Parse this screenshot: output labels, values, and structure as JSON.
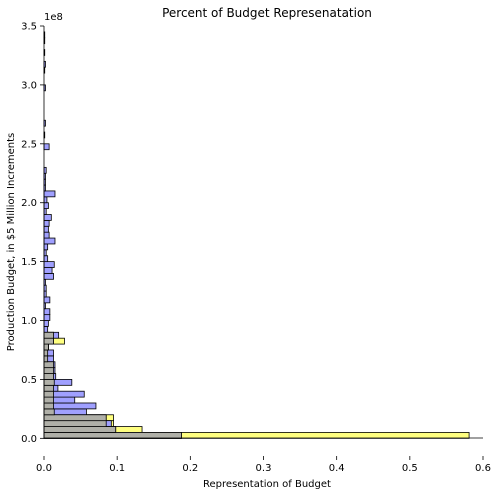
{
  "chart_data": {
    "type": "bar",
    "orientation": "horizontal",
    "title": "Percent of Budget Represenatation",
    "xlabel": "Representation of Budget",
    "ylabel": "Production Budget, in $5 Million Increments",
    "y_offset_label": "1e8",
    "xlim": [
      0,
      0.6
    ],
    "ylim": [
      -0.15,
      3.5
    ],
    "xticks": [
      "0.0",
      "0.1",
      "0.2",
      "0.3",
      "0.4",
      "0.5",
      "0.6"
    ],
    "yticks": [
      "0.0",
      "0.5",
      "1.0",
      "1.5",
      "2.0",
      "2.5",
      "3.0",
      "3.5"
    ],
    "grid": false,
    "bin_width": 0.05,
    "series": [
      {
        "color": "#ffff80",
        "bins": [
          [
            0,
            0.581
          ],
          [
            1,
            0.134
          ],
          [
            2,
            0.095
          ],
          [
            3,
            0.095
          ],
          [
            4,
            0.014
          ],
          [
            5,
            0.013
          ],
          [
            6,
            0.01
          ],
          [
            7,
            0.01
          ],
          [
            8,
            0.008
          ],
          [
            9,
            0.009
          ],
          [
            10,
            0.005
          ],
          [
            11,
            0.005
          ],
          [
            12,
            0.005
          ],
          [
            13,
            0.005
          ],
          [
            14,
            0.005
          ],
          [
            15,
            0.006
          ],
          [
            16,
            0.028
          ],
          [
            17,
            0.013
          ]
        ]
      },
      {
        "color": "#a0a0ff",
        "bins": [
          [
            0,
            0.188
          ],
          [
            1,
            0.098
          ],
          [
            2,
            0.092
          ],
          [
            3,
            0.085
          ],
          [
            4,
            0.058
          ],
          [
            5,
            0.071
          ],
          [
            6,
            0.042
          ],
          [
            7,
            0.055
          ],
          [
            8,
            0.019
          ],
          [
            9,
            0.038
          ],
          [
            10,
            0.016
          ],
          [
            11,
            0.015
          ],
          [
            12,
            0.015
          ],
          [
            13,
            0.013
          ],
          [
            14,
            0.013
          ],
          [
            15,
            0.006
          ],
          [
            16,
            0.013
          ],
          [
            17,
            0.02
          ],
          [
            18,
            0.005
          ],
          [
            19,
            0.006
          ],
          [
            20,
            0.008
          ],
          [
            21,
            0.008
          ],
          [
            22,
            0.002
          ],
          [
            23,
            0.008
          ],
          [
            24,
            0.003
          ],
          [
            25,
            0.003
          ],
          [
            26,
            0.002
          ],
          [
            27,
            0.013
          ],
          [
            28,
            0.011
          ],
          [
            29,
            0.014
          ],
          [
            30,
            0.005
          ],
          [
            31,
            0.003
          ],
          [
            32,
            0.005
          ],
          [
            33,
            0.015
          ],
          [
            34,
            0.007
          ],
          [
            35,
            0.006
          ],
          [
            36,
            0.007
          ],
          [
            37,
            0.01
          ],
          [
            38,
            0.003
          ],
          [
            39,
            0.006
          ],
          [
            40,
            0.004
          ],
          [
            41,
            0.015
          ],
          [
            42,
            0.002
          ],
          [
            43,
            0.002
          ],
          [
            44,
            0.002
          ],
          [
            45,
            0.003
          ],
          [
            49,
            0.007
          ],
          [
            51,
            0.001
          ],
          [
            53,
            0.002
          ],
          [
            59,
            0.002
          ],
          [
            62,
            0.001
          ],
          [
            63,
            0.002
          ],
          [
            65,
            0.001
          ],
          [
            67,
            0.001
          ],
          [
            68,
            0.001
          ]
        ]
      },
      {
        "color": "#b0b0a8",
        "bins": [
          [
            0,
            0.188
          ],
          [
            1,
            0.098
          ],
          [
            2,
            0.085
          ],
          [
            3,
            0.085
          ],
          [
            4,
            0.014
          ],
          [
            5,
            0.013
          ],
          [
            6,
            0.013
          ],
          [
            7,
            0.013
          ],
          [
            8,
            0.013
          ],
          [
            9,
            0.014
          ],
          [
            10,
            0.013
          ],
          [
            11,
            0.013
          ],
          [
            12,
            0.013
          ],
          [
            13,
            0.005
          ],
          [
            14,
            0.005
          ],
          [
            15,
            0.006
          ],
          [
            16,
            0.013
          ],
          [
            17,
            0.013
          ]
        ]
      }
    ]
  }
}
